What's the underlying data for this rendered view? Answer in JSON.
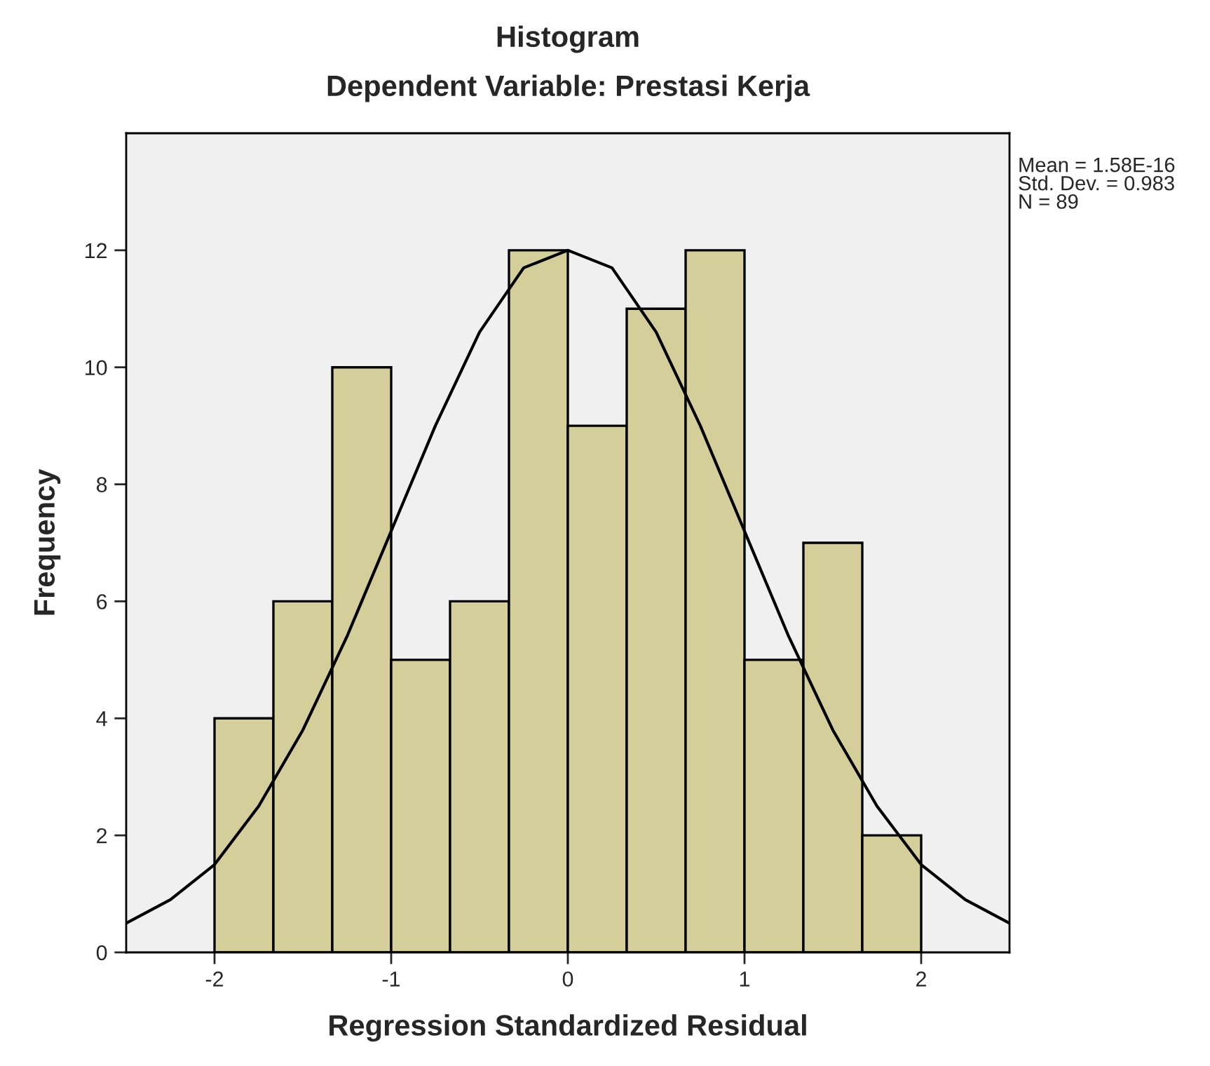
{
  "chart_data": {
    "type": "histogram",
    "title": "Histogram",
    "subtitle": "Dependent Variable: Prestasi Kerja",
    "xlabel": "Regression Standardized Residual",
    "ylabel": "Frequency",
    "bins": [
      -2,
      -1.6667,
      -1.3333,
      -1,
      -0.6667,
      -0.3333,
      0,
      0.3333,
      0.6667,
      1,
      1.3333,
      1.6667,
      2
    ],
    "values": [
      4,
      6,
      10,
      5,
      6,
      12,
      9,
      11,
      12,
      5,
      7,
      2
    ],
    "color": "#d4cf9a",
    "series": [
      {
        "type": "line",
        "color": "#000000",
        "x": [
          -2.5,
          -2.25,
          -2,
          -1.75,
          -1.5,
          -1.25,
          -1,
          -0.75,
          -0.5,
          -0.25,
          0,
          0.25,
          0.5,
          0.75,
          1,
          1.25,
          1.5,
          1.75,
          2,
          2.25,
          2.5
        ],
        "values": [
          0.5,
          0.9,
          1.5,
          2.5,
          3.8,
          5.4,
          7.2,
          9.0,
          10.6,
          11.7,
          12.0,
          11.7,
          10.6,
          9.0,
          7.2,
          5.4,
          3.8,
          2.5,
          1.5,
          0.9,
          0.5
        ]
      }
    ],
    "annotations": [
      "Mean = 1.58E-16\nStd. Dev. = 0.983\nN = 89"
    ],
    "xlim": [
      -2.5,
      2.5
    ],
    "xticks": [
      -2,
      -1,
      0,
      1,
      2
    ],
    "ylim": [
      0,
      14
    ],
    "yticks": [
      0,
      2,
      4,
      6,
      8,
      10,
      12
    ],
    "grid": false,
    "legend": false
  }
}
